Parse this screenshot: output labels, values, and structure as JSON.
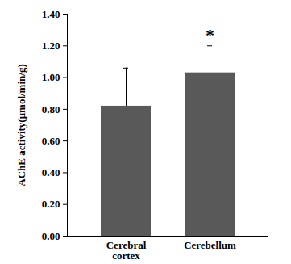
{
  "chart_data": {
    "type": "bar",
    "y_label": "AChE activity(μmol/min/g)",
    "categories": [
      "Cerebral cortex",
      "Cerebellum"
    ],
    "values": [
      0.82,
      1.03
    ],
    "errors": [
      0.24,
      0.17
    ],
    "color": "#595959",
    "ylim": [
      0,
      1.4
    ],
    "yticks": [
      {
        "value": 0,
        "label": "0.00"
      },
      {
        "value": 0.2,
        "label": "0.20"
      },
      {
        "value": 0.4,
        "label": "0.40"
      },
      {
        "value": 0.6,
        "label": "0.60"
      },
      {
        "value": 0.8,
        "label": "0.80"
      },
      {
        "value": 1.0,
        "label": "1.00"
      },
      {
        "value": 1.2,
        "label": "1.20"
      },
      {
        "value": 1.4,
        "label": "1.40"
      }
    ],
    "annotations": [
      {
        "category": "Cerebellum",
        "text": "*"
      }
    ],
    "grid": false
  }
}
